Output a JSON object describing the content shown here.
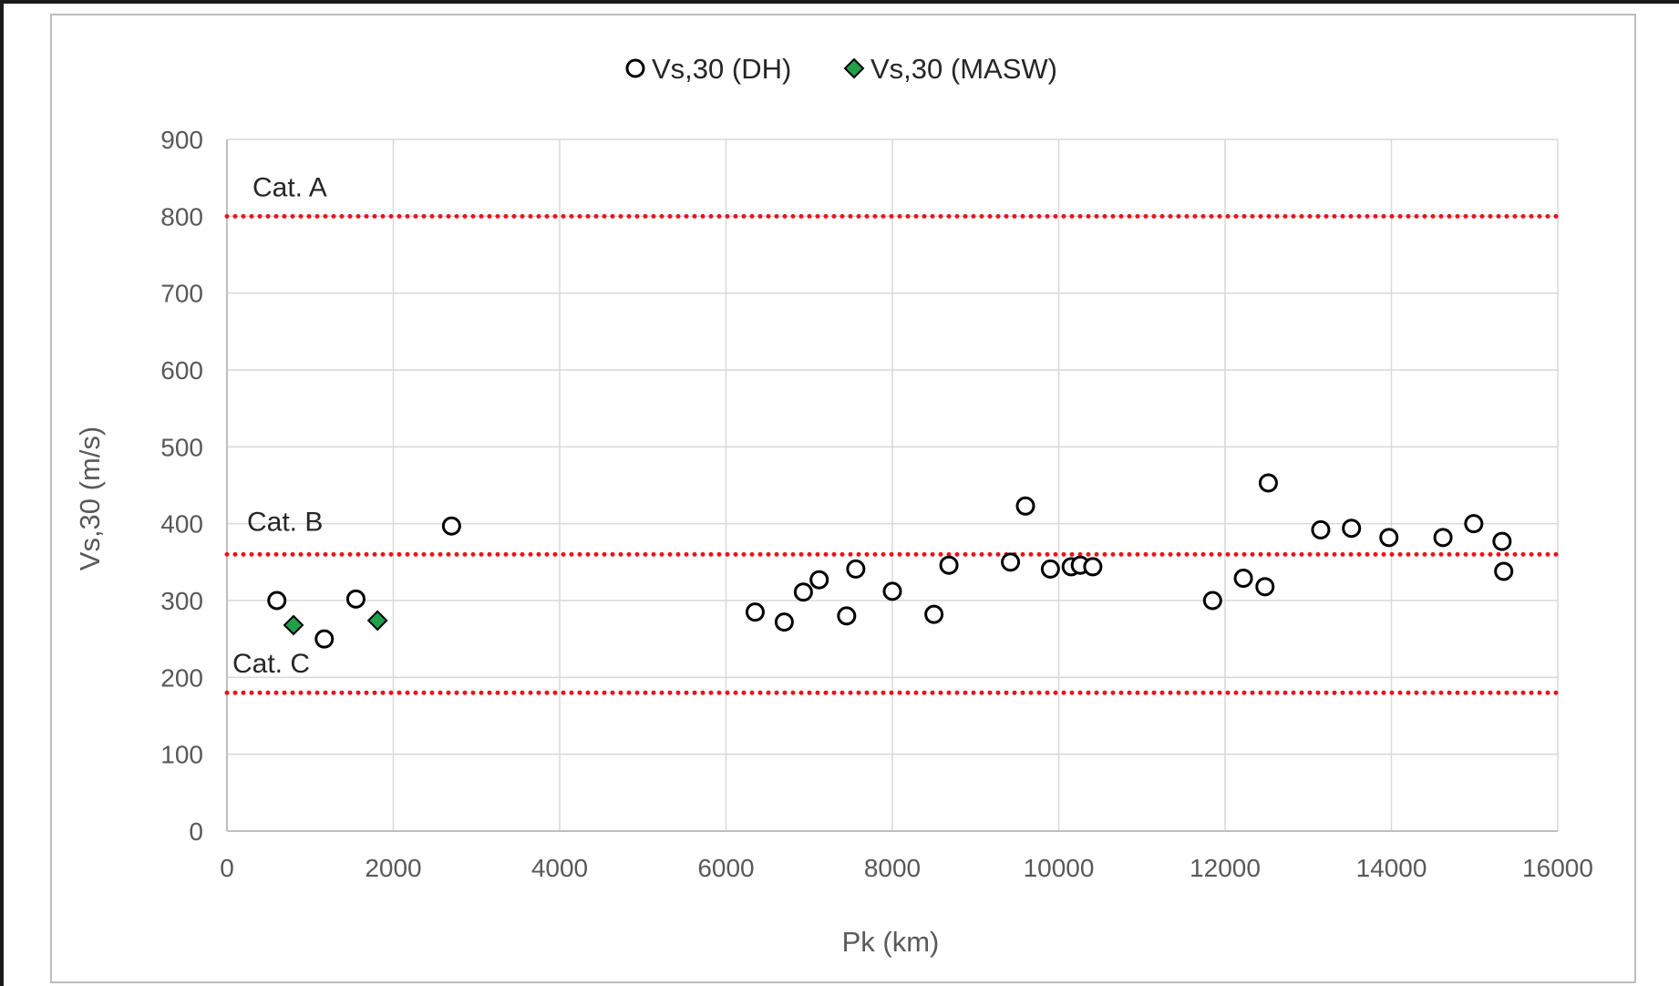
{
  "chart_data": {
    "type": "scatter",
    "title": "",
    "xlabel": "Pk (km)",
    "ylabel": "Vs,30 (m/s)",
    "xlim": [
      0,
      16000
    ],
    "ylim": [
      0,
      900
    ],
    "xticks": [
      0,
      2000,
      4000,
      6000,
      8000,
      10000,
      12000,
      14000,
      16000
    ],
    "yticks": [
      0,
      100,
      200,
      300,
      400,
      500,
      600,
      700,
      800,
      900
    ],
    "grid": true,
    "legend_position": "top-center",
    "series": [
      {
        "name": "Vs,30 (DH)",
        "marker": "circle-open",
        "color": "#000000",
        "points": [
          {
            "x": 600,
            "y": 300
          },
          {
            "x": 1170,
            "y": 250
          },
          {
            "x": 1550,
            "y": 302
          },
          {
            "x": 2700,
            "y": 397
          },
          {
            "x": 6350,
            "y": 285
          },
          {
            "x": 6700,
            "y": 272
          },
          {
            "x": 6930,
            "y": 311
          },
          {
            "x": 7120,
            "y": 327
          },
          {
            "x": 7450,
            "y": 280
          },
          {
            "x": 7560,
            "y": 341
          },
          {
            "x": 8000,
            "y": 312
          },
          {
            "x": 8500,
            "y": 282
          },
          {
            "x": 8680,
            "y": 346
          },
          {
            "x": 9420,
            "y": 350
          },
          {
            "x": 9600,
            "y": 423
          },
          {
            "x": 9900,
            "y": 341
          },
          {
            "x": 10150,
            "y": 344
          },
          {
            "x": 10260,
            "y": 346
          },
          {
            "x": 10410,
            "y": 344
          },
          {
            "x": 11850,
            "y": 300
          },
          {
            "x": 12220,
            "y": 329
          },
          {
            "x": 12480,
            "y": 318
          },
          {
            "x": 12520,
            "y": 453
          },
          {
            "x": 13150,
            "y": 392
          },
          {
            "x": 13520,
            "y": 394
          },
          {
            "x": 13970,
            "y": 382
          },
          {
            "x": 14620,
            "y": 382
          },
          {
            "x": 14990,
            "y": 400
          },
          {
            "x": 15330,
            "y": 377
          },
          {
            "x": 15350,
            "y": 338
          }
        ]
      },
      {
        "name": "Vs,30 (MASW)",
        "marker": "diamond-filled",
        "color": "#1fa049",
        "points": [
          {
            "x": 800,
            "y": 268
          },
          {
            "x": 1810,
            "y": 274
          }
        ]
      }
    ],
    "reference_lines": [
      {
        "y": 800,
        "label": "Cat. A",
        "color": "#e8141c",
        "style": "dotted"
      },
      {
        "y": 360,
        "label": "Cat. B",
        "color": "#e8141c",
        "style": "dotted"
      },
      {
        "y": 180,
        "label": "Cat. C",
        "color": "#e8141c",
        "style": "dotted"
      }
    ]
  }
}
